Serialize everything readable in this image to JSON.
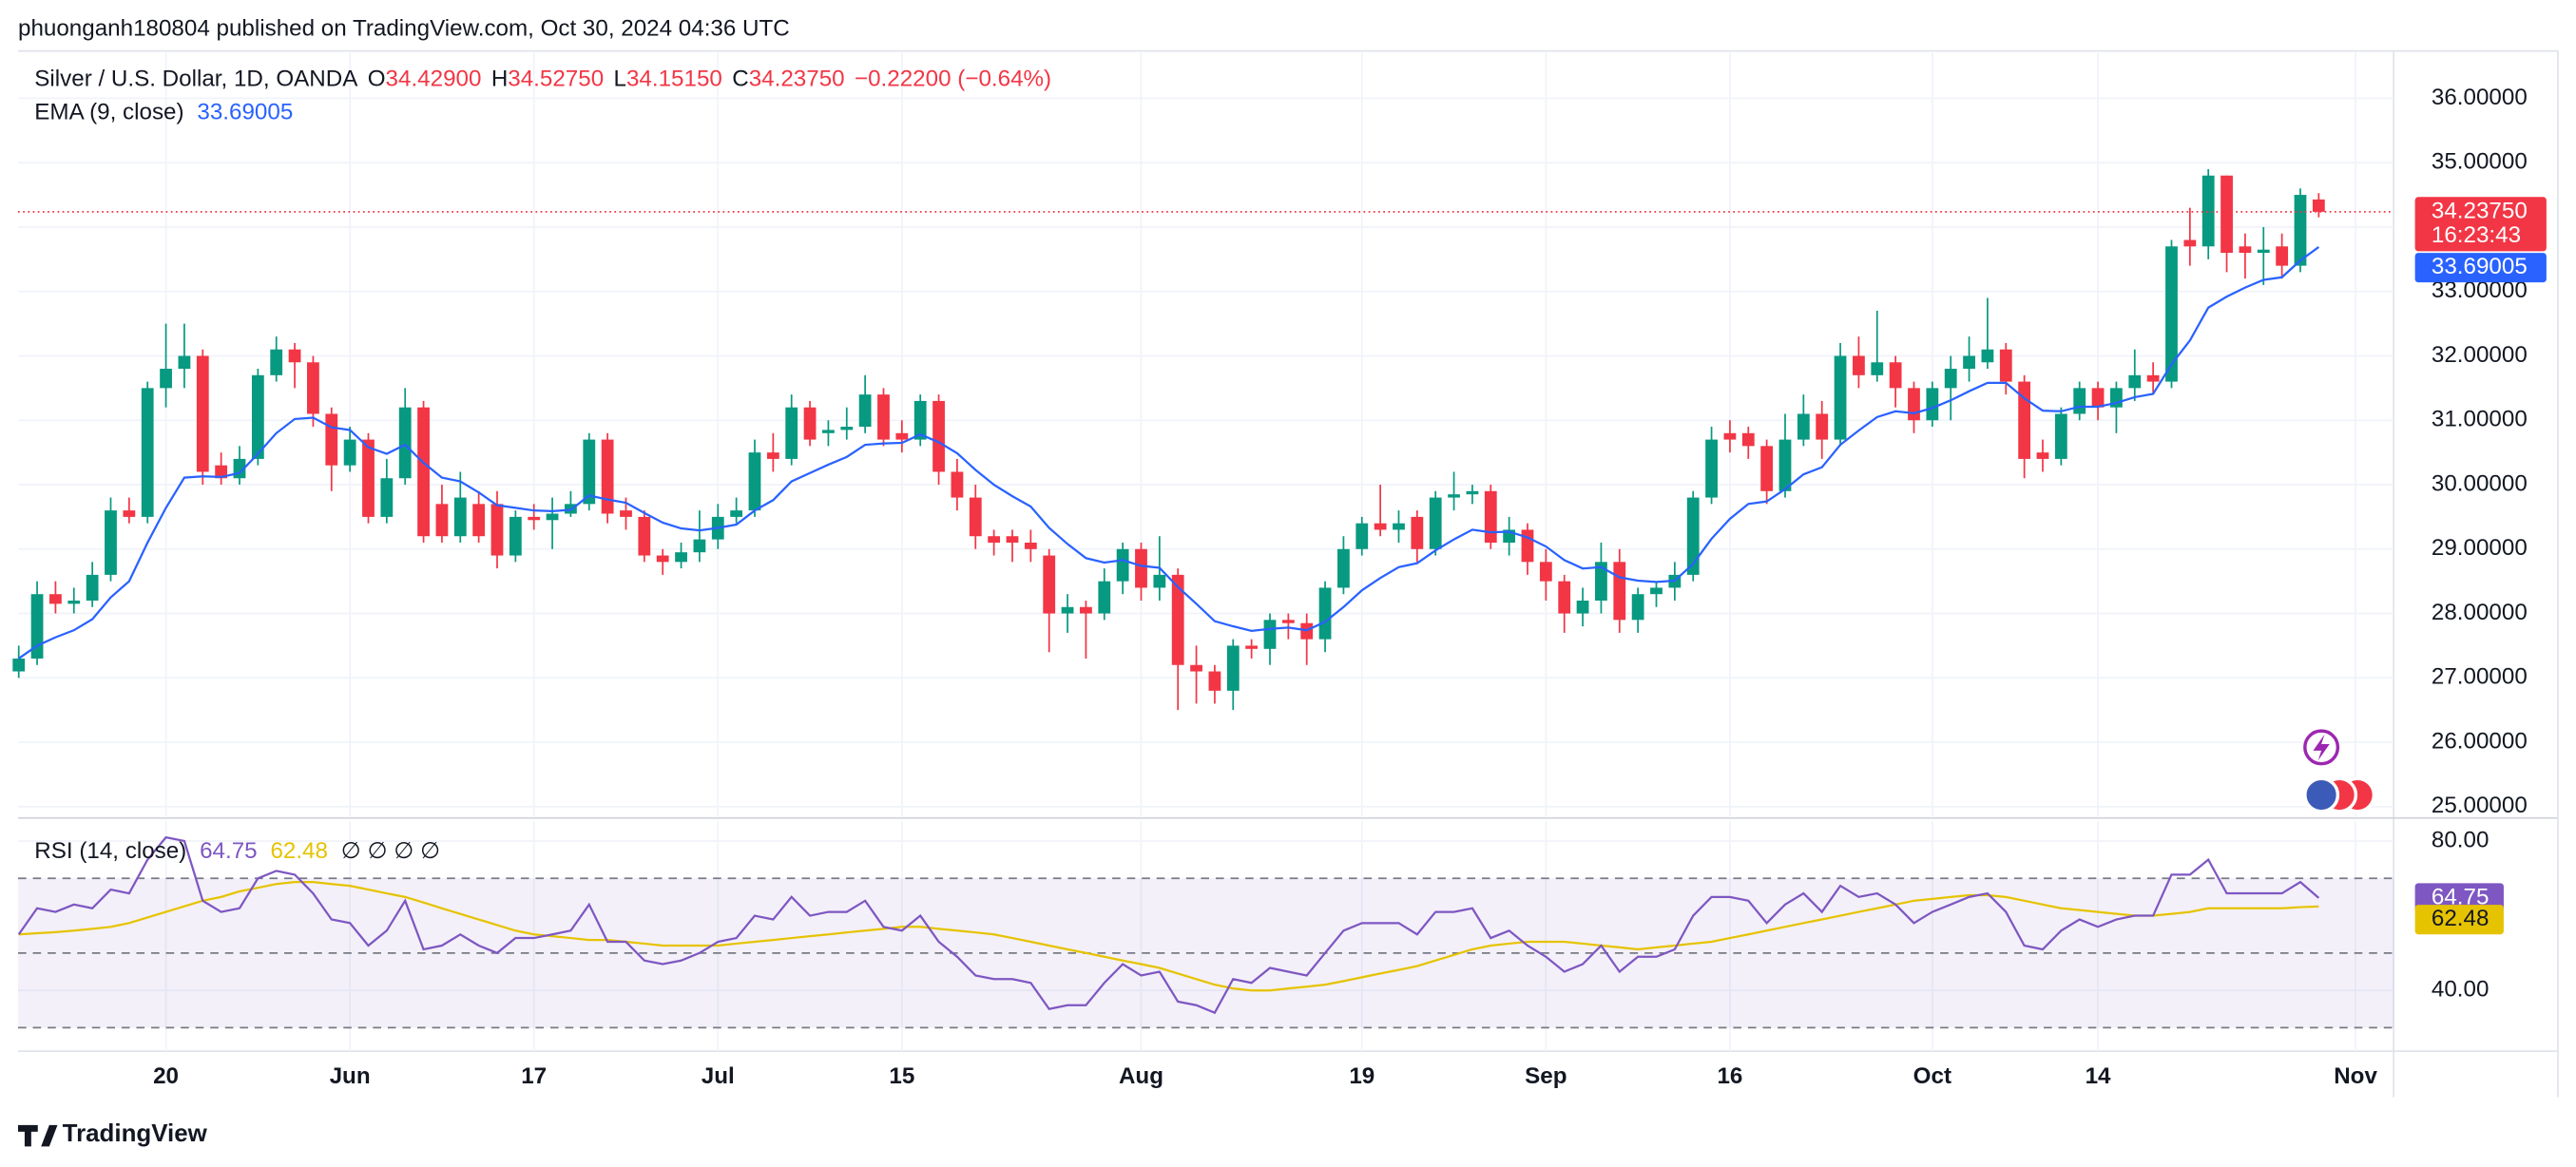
{
  "header": {
    "publisher": "phuonganh180804 published on TradingView.com, Oct 30, 2024 04:36 UTC",
    "brand": "TradingView"
  },
  "chart_data": {
    "type": "candlestick",
    "title": "Silver / U.S. Dollar, 1D, OANDA",
    "ohlc_labels": [
      {
        "key": "O",
        "value": "34.42900"
      },
      {
        "key": "H",
        "value": "34.52750"
      },
      {
        "key": "L",
        "value": "34.15150"
      },
      {
        "key": "C",
        "value": "34.23750"
      }
    ],
    "change": "−0.22200 (−0.64%)",
    "up_color": "#089981",
    "down_color": "#f23645",
    "open": [
      27.1,
      27.3,
      28.3,
      28.15,
      28.2,
      28.6,
      29.6,
      29.5,
      31.5,
      31.8,
      32.0,
      30.3,
      30.1,
      30.4,
      31.7,
      32.1,
      31.9,
      31.1,
      30.3,
      30.7,
      29.5,
      30.1,
      31.2,
      29.7,
      29.2,
      29.7,
      29.7,
      28.9,
      29.5,
      29.45,
      29.55,
      29.7,
      30.7,
      29.6,
      29.5,
      28.9,
      28.8,
      28.95,
      29.15,
      29.5,
      29.6,
      30.5,
      30.4,
      31.2,
      30.8,
      30.85,
      30.9,
      31.4,
      30.8,
      30.7,
      31.3,
      30.2,
      29.8,
      29.2,
      29.2,
      29.1,
      28.9,
      28.0,
      28.1,
      28.0,
      28.5,
      29.0,
      28.4,
      28.6,
      27.2,
      27.1,
      26.8,
      27.5,
      27.45,
      27.9,
      27.85,
      27.6,
      28.4,
      29.0,
      29.4,
      29.3,
      29.5,
      29.0,
      29.8,
      29.85,
      29.9,
      29.1,
      29.3,
      28.8,
      28.5,
      28.0,
      28.2,
      28.8,
      27.9,
      28.3,
      28.4,
      28.6,
      29.8,
      30.8,
      30.8,
      30.6,
      29.9,
      30.7,
      31.1,
      30.7,
      32.0,
      31.7,
      31.9,
      31.5,
      31.0,
      31.5,
      31.8,
      31.9,
      32.1,
      31.6,
      30.5,
      30.4,
      31.1,
      31.5,
      31.2,
      31.5,
      31.7,
      31.6,
      33.8,
      33.7,
      34.8,
      33.7,
      33.6,
      33.7,
      33.4,
      34.429
    ],
    "high": [
      27.5,
      28.5,
      28.5,
      28.4,
      28.8,
      29.8,
      29.8,
      31.6,
      32.5,
      32.5,
      32.1,
      30.5,
      30.6,
      31.8,
      32.3,
      32.2,
      32.0,
      31.2,
      30.9,
      30.8,
      30.4,
      31.5,
      31.3,
      30.0,
      30.2,
      29.9,
      29.9,
      29.6,
      29.7,
      29.8,
      29.9,
      30.8,
      30.8,
      29.8,
      29.6,
      29.0,
      29.1,
      29.6,
      29.7,
      29.8,
      30.7,
      30.8,
      31.4,
      31.3,
      31.0,
      31.2,
      31.7,
      31.5,
      31.0,
      31.4,
      31.4,
      30.4,
      30.0,
      29.3,
      29.3,
      29.3,
      29.0,
      28.3,
      28.2,
      28.7,
      29.1,
      29.1,
      29.2,
      28.7,
      27.5,
      27.2,
      27.6,
      27.6,
      28.0,
      28.0,
      28.0,
      28.5,
      29.2,
      29.5,
      30.0,
      29.6,
      29.6,
      29.9,
      30.2,
      30.0,
      30.0,
      29.5,
      29.4,
      29.0,
      28.6,
      28.4,
      29.1,
      29.0,
      28.4,
      28.5,
      28.8,
      29.9,
      30.9,
      31.0,
      30.9,
      30.7,
      31.1,
      31.4,
      31.3,
      32.2,
      32.3,
      32.7,
      32.0,
      31.6,
      31.6,
      32.0,
      32.3,
      32.9,
      32.2,
      31.7,
      30.7,
      31.2,
      31.6,
      31.6,
      31.6,
      32.1,
      31.9,
      33.8,
      34.3,
      34.9,
      34.8,
      33.9,
      34.0,
      33.9,
      34.6,
      34.5275
    ],
    "low": [
      27.0,
      27.2,
      28.0,
      28.0,
      28.1,
      28.5,
      29.4,
      29.4,
      31.2,
      31.5,
      30.0,
      30.0,
      30.0,
      30.3,
      31.6,
      31.5,
      30.9,
      29.9,
      30.2,
      29.4,
      29.4,
      30.0,
      29.1,
      29.1,
      29.1,
      29.1,
      28.7,
      28.8,
      29.3,
      29.0,
      29.5,
      29.6,
      29.4,
      29.3,
      28.8,
      28.6,
      28.7,
      28.8,
      29.0,
      29.4,
      29.5,
      30.2,
      30.3,
      30.6,
      30.6,
      30.7,
      30.8,
      30.6,
      30.5,
      30.6,
      30.0,
      29.6,
      29.0,
      28.9,
      28.8,
      28.8,
      27.4,
      27.7,
      27.3,
      27.9,
      28.3,
      28.2,
      28.2,
      26.5,
      26.6,
      26.6,
      26.5,
      27.3,
      27.2,
      27.6,
      27.2,
      27.4,
      28.3,
      28.9,
      29.2,
      29.1,
      28.8,
      28.9,
      29.6,
      29.7,
      29.0,
      28.9,
      28.6,
      28.2,
      27.7,
      27.8,
      28.0,
      27.7,
      27.7,
      28.1,
      28.2,
      28.5,
      29.7,
      30.5,
      30.4,
      29.7,
      29.8,
      30.6,
      30.4,
      30.6,
      31.5,
      31.6,
      31.2,
      30.8,
      30.9,
      31.0,
      31.6,
      31.8,
      31.4,
      30.1,
      30.2,
      30.3,
      31.0,
      31.0,
      30.8,
      31.3,
      31.4,
      31.5,
      33.4,
      33.5,
      33.3,
      33.2,
      33.1,
      33.2,
      33.3,
      34.1515
    ],
    "close": [
      27.3,
      28.3,
      28.15,
      28.2,
      28.6,
      29.6,
      29.5,
      31.5,
      31.8,
      32.0,
      30.2,
      30.1,
      30.4,
      31.7,
      32.1,
      31.9,
      31.1,
      30.3,
      30.7,
      29.5,
      30.1,
      31.2,
      29.2,
      29.2,
      29.8,
      29.2,
      28.9,
      29.5,
      29.45,
      29.55,
      29.7,
      30.7,
      29.55,
      29.5,
      28.9,
      28.8,
      28.95,
      29.15,
      29.5,
      29.6,
      30.5,
      30.4,
      31.2,
      30.7,
      30.85,
      30.9,
      31.4,
      30.7,
      30.7,
      31.3,
      30.2,
      29.8,
      29.2,
      29.1,
      29.1,
      29.0,
      28.0,
      28.1,
      28.0,
      28.5,
      29.0,
      28.4,
      28.6,
      27.2,
      27.1,
      26.8,
      27.5,
      27.45,
      27.9,
      27.85,
      27.6,
      28.4,
      29.0,
      29.4,
      29.3,
      29.4,
      29.0,
      29.8,
      29.85,
      29.9,
      29.1,
      29.3,
      28.8,
      28.5,
      28.0,
      28.2,
      28.8,
      27.9,
      28.3,
      28.4,
      28.6,
      29.8,
      30.7,
      30.7,
      30.6,
      29.9,
      30.7,
      31.1,
      30.7,
      32.0,
      31.7,
      31.9,
      31.5,
      31.0,
      31.5,
      31.8,
      32.0,
      32.1,
      31.6,
      30.4,
      30.4,
      31.1,
      31.5,
      31.2,
      31.5,
      31.7,
      31.6,
      33.7,
      33.7,
      34.8,
      33.6,
      33.6,
      33.65,
      33.4,
      34.5,
      34.2375
    ],
    "last_price_label": "34.23750",
    "countdown": "16:23:43",
    "overlays": [
      {
        "name": "EMA (9, close)",
        "color": "#2962ff",
        "value_label": "33.69005",
        "values": [
          27.3,
          27.5,
          27.63,
          27.74,
          27.91,
          28.25,
          28.5,
          29.1,
          29.64,
          30.11,
          30.13,
          30.12,
          30.18,
          30.48,
          30.8,
          31.02,
          31.04,
          30.89,
          30.85,
          30.58,
          30.48,
          30.62,
          30.34,
          30.11,
          30.05,
          29.88,
          29.68,
          29.64,
          29.6,
          29.59,
          29.61,
          29.83,
          29.77,
          29.72,
          29.56,
          29.41,
          29.32,
          29.29,
          29.33,
          29.38,
          29.6,
          29.76,
          30.05,
          30.18,
          30.31,
          30.43,
          30.62,
          30.64,
          30.65,
          30.78,
          30.66,
          30.49,
          30.23,
          30.0,
          29.82,
          29.66,
          29.33,
          29.08,
          28.86,
          28.79,
          28.83,
          28.74,
          28.71,
          28.41,
          28.15,
          27.88,
          27.8,
          27.73,
          27.76,
          27.78,
          27.74,
          27.87,
          28.1,
          28.36,
          28.55,
          28.72,
          28.78,
          28.98,
          29.15,
          29.3,
          29.26,
          29.27,
          29.18,
          29.04,
          28.83,
          28.7,
          28.72,
          28.56,
          28.51,
          28.49,
          28.51,
          28.77,
          29.16,
          29.47,
          29.7,
          29.74,
          29.93,
          30.16,
          30.27,
          30.62,
          30.84,
          31.05,
          31.14,
          31.11,
          31.19,
          31.31,
          31.45,
          31.58,
          31.58,
          31.34,
          31.15,
          31.14,
          31.21,
          31.21,
          31.27,
          31.36,
          31.41,
          31.87,
          32.24,
          32.75,
          32.92,
          33.06,
          33.18,
          33.22,
          33.48,
          33.69005
        ]
      }
    ],
    "xlim": [
      0,
      129
    ],
    "xticks": [
      {
        "value": 8,
        "label": "20"
      },
      {
        "value": 18,
        "label": "Jun"
      },
      {
        "value": 28,
        "label": "17"
      },
      {
        "value": 38,
        "label": "Jul"
      },
      {
        "value": 48,
        "label": "15"
      },
      {
        "value": 61,
        "label": "Aug"
      },
      {
        "value": 73,
        "label": "19"
      },
      {
        "value": 83,
        "label": "Sep"
      },
      {
        "value": 93,
        "label": "16"
      },
      {
        "value": 104,
        "label": "Oct"
      },
      {
        "value": 113,
        "label": "14"
      },
      {
        "value": 127,
        "label": "Nov"
      }
    ],
    "ylim": [
      24.85,
      36.71
    ],
    "yticks": [
      {
        "value": 25,
        "label": "25.00000"
      },
      {
        "value": 26,
        "label": "26.00000"
      },
      {
        "value": 27,
        "label": "27.00000"
      },
      {
        "value": 28,
        "label": "28.00000"
      },
      {
        "value": 29,
        "label": "29.00000"
      },
      {
        "value": 30,
        "label": "30.00000"
      },
      {
        "value": 31,
        "label": "31.00000"
      },
      {
        "value": 32,
        "label": "32.00000"
      },
      {
        "value": 33,
        "label": "33.00000"
      },
      {
        "value": 34,
        "label": "34.00000"
      },
      {
        "value": 35,
        "label": "35.00000"
      },
      {
        "value": 36,
        "label": "36.00000"
      }
    ],
    "grid": true,
    "indicator": {
      "type": "line",
      "name": "RSI (14, close)",
      "flags": "∅ ∅ ∅ ∅",
      "ylim": [
        23.7,
        85.3
      ],
      "yticks": [
        {
          "value": 40,
          "label": "40.00"
        },
        {
          "value": 80,
          "label": "80.00"
        }
      ],
      "levels": [
        70,
        50,
        30
      ],
      "band_color": "#7e57c2",
      "series": [
        {
          "name": "RSI",
          "color": "#7e57c2",
          "values": [
            55,
            62,
            61,
            63,
            62,
            67,
            66,
            75,
            81,
            80,
            64,
            61,
            62,
            70,
            72,
            71,
            66,
            59,
            58,
            52,
            56,
            64,
            51,
            52,
            55,
            52,
            50,
            54,
            54,
            55,
            56,
            63,
            53,
            53,
            48,
            47,
            48,
            50,
            53,
            54,
            60,
            59,
            65,
            60,
            61,
            61,
            64,
            57,
            56,
            60,
            53,
            49,
            44,
            43,
            43,
            42,
            35,
            36,
            36,
            42,
            47,
            44,
            45,
            37,
            36,
            34,
            43,
            42,
            46,
            45,
            44,
            50,
            56,
            58,
            58,
            58,
            55,
            61,
            61,
            62,
            54,
            56,
            52,
            49,
            45,
            47,
            52,
            45,
            49,
            49,
            51,
            60,
            65,
            65,
            64,
            58,
            63,
            66,
            61,
            68,
            65,
            66,
            63,
            58,
            61,
            63,
            65,
            66,
            61,
            52,
            51,
            56,
            59,
            57,
            59,
            60,
            60,
            71,
            71,
            75,
            66,
            66,
            66,
            66,
            69,
            64.75
          ]
        },
        {
          "name": "RSI-based MA",
          "color": "#e6c300",
          "values": [
            55,
            55.3,
            55.6,
            56,
            56.5,
            57,
            58,
            59.5,
            61,
            62.5,
            64,
            65,
            66.5,
            67.5,
            68.5,
            69,
            69,
            68.5,
            68,
            67,
            66,
            65,
            63.5,
            62,
            60.5,
            59,
            57.5,
            56,
            55,
            54.5,
            54,
            53.5,
            53.5,
            53,
            52.5,
            52,
            52,
            52,
            52,
            52.5,
            53,
            53.5,
            54,
            54.5,
            55,
            55.5,
            56,
            56.5,
            57,
            57,
            56.5,
            56,
            55.5,
            55,
            54,
            53,
            52,
            51,
            50,
            49,
            48,
            47,
            46,
            44.5,
            43,
            41.5,
            40.5,
            40,
            40,
            40.5,
            41,
            41.5,
            42.5,
            43.5,
            44.5,
            45.5,
            46.5,
            48,
            49.5,
            51,
            52,
            52.5,
            53,
            53,
            53,
            52.5,
            52,
            51.5,
            51,
            51.5,
            52,
            52.5,
            53,
            54,
            55,
            56,
            57,
            58,
            59,
            60,
            61,
            62,
            63,
            64,
            64.5,
            65,
            65.5,
            65.5,
            65,
            64,
            63,
            62,
            61.5,
            61,
            60.5,
            60,
            60,
            60.5,
            61,
            62,
            62,
            62,
            62,
            62,
            62.3,
            62.48
          ]
        }
      ]
    }
  }
}
